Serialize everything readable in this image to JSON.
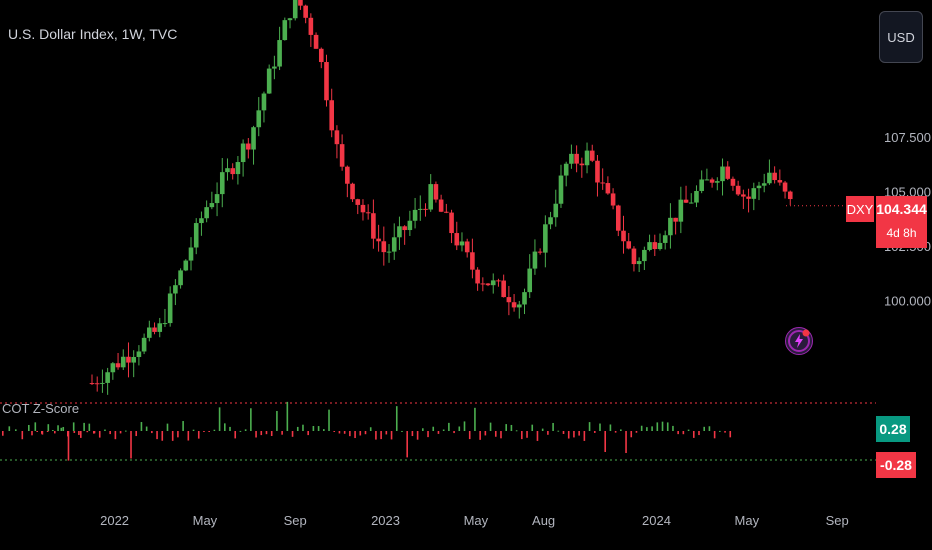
{
  "header": {
    "title": "U.S. Dollar Index, 1W, TVC",
    "currency": "USD"
  },
  "indicator": {
    "title": "COT Z-Score",
    "upper_value": "0.28",
    "lower_value": "-0.28"
  },
  "last_price": {
    "symbol": "DXY",
    "price": "104.344",
    "countdown": "4d 8h"
  },
  "colors": {
    "up": "#4caf50",
    "down": "#f23645",
    "background": "#000000",
    "pos_tag": "#089981",
    "neg_tag": "#f23645"
  },
  "icons": {
    "logo": "lightning-bolt-icon"
  },
  "chart_data": {
    "type": "candlestick",
    "title": "U.S. Dollar Index, 1W, TVC",
    "y_ticks": [
      "107.500",
      "105.000",
      "102.500",
      "100.000"
    ],
    "x_ticks": [
      "2022",
      "May",
      "Sep",
      "2023",
      "May",
      "Aug",
      "2024",
      "May",
      "Sep"
    ],
    "ylim": [
      96.8,
      113.8
    ],
    "approx_weekly_close_path": [
      {
        "date": "2021-12",
        "close": 96.2
      },
      {
        "date": "2022-03",
        "close": 98.7
      },
      {
        "date": "2022-05",
        "close": 104.2
      },
      {
        "date": "2022-07",
        "close": 107.5
      },
      {
        "date": "2022-09",
        "close": 114.1
      },
      {
        "date": "2022-10",
        "close": 111.7
      },
      {
        "date": "2022-11",
        "close": 106.1
      },
      {
        "date": "2023-01",
        "close": 102.1
      },
      {
        "date": "2023-03",
        "close": 104.9
      },
      {
        "date": "2023-05",
        "close": 101.2
      },
      {
        "date": "2023-07",
        "close": 99.9
      },
      {
        "date": "2023-09",
        "close": 106.2
      },
      {
        "date": "2023-10",
        "close": 106.7
      },
      {
        "date": "2023-12",
        "close": 101.7
      },
      {
        "date": "2024-02",
        "close": 104.1
      },
      {
        "date": "2024-04",
        "close": 106.2
      },
      {
        "date": "2024-05",
        "close": 104.6
      },
      {
        "date": "2024-06",
        "close": 105.9
      },
      {
        "date": "2024-07",
        "close": 104.3
      }
    ]
  }
}
